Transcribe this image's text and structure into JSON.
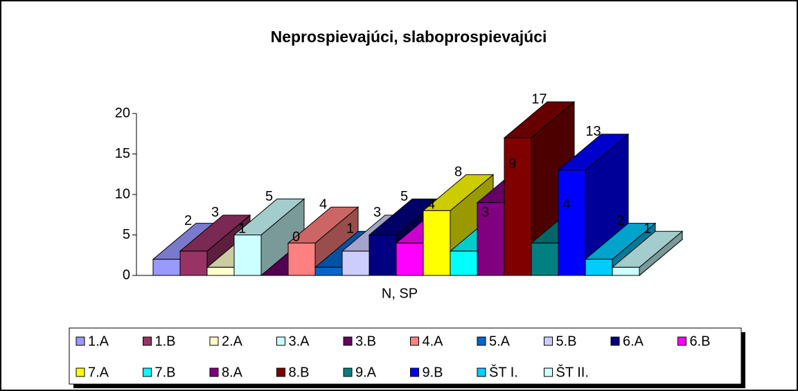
{
  "chart_data": {
    "type": "bar3d",
    "title": "Neprospievajúci, slaboprospievajúci",
    "categories": [
      "N, SP"
    ],
    "ylim": [
      0,
      20
    ],
    "yticks": [
      0,
      5,
      10,
      15,
      20
    ],
    "series": [
      {
        "name": "1.A",
        "color": "#9999FF",
        "values": [
          2
        ]
      },
      {
        "name": "1.B",
        "color": "#993366",
        "values": [
          3
        ]
      },
      {
        "name": "2.A",
        "color": "#FFFFCC",
        "values": [
          1
        ]
      },
      {
        "name": "3.A",
        "color": "#CCFFFF",
        "values": [
          5
        ]
      },
      {
        "name": "3.B",
        "color": "#660066",
        "values": [
          0
        ]
      },
      {
        "name": "4.A",
        "color": "#FF8080",
        "values": [
          4
        ]
      },
      {
        "name": "5.A",
        "color": "#0066CC",
        "values": [
          1
        ]
      },
      {
        "name": "5.B",
        "color": "#CCCCFF",
        "values": [
          3
        ]
      },
      {
        "name": "6.A",
        "color": "#000080",
        "values": [
          5
        ]
      },
      {
        "name": "6.B",
        "color": "#FF00FF",
        "values": [
          4
        ]
      },
      {
        "name": "7.A",
        "color": "#FFFF00",
        "values": [
          8
        ]
      },
      {
        "name": "7.B",
        "color": "#00FFFF",
        "values": [
          3
        ]
      },
      {
        "name": "8.A",
        "color": "#800080",
        "values": [
          9
        ]
      },
      {
        "name": "8.B",
        "color": "#800000",
        "values": [
          17
        ]
      },
      {
        "name": "9.A",
        "color": "#008080",
        "values": [
          4
        ]
      },
      {
        "name": "9.B",
        "color": "#0000FF",
        "values": [
          13
        ]
      },
      {
        "name": "ŠT I.",
        "color": "#00CCFF",
        "values": [
          2
        ]
      },
      {
        "name": "ŠT II.",
        "color": "#CCFFFF",
        "values": [
          1
        ]
      }
    ]
  }
}
